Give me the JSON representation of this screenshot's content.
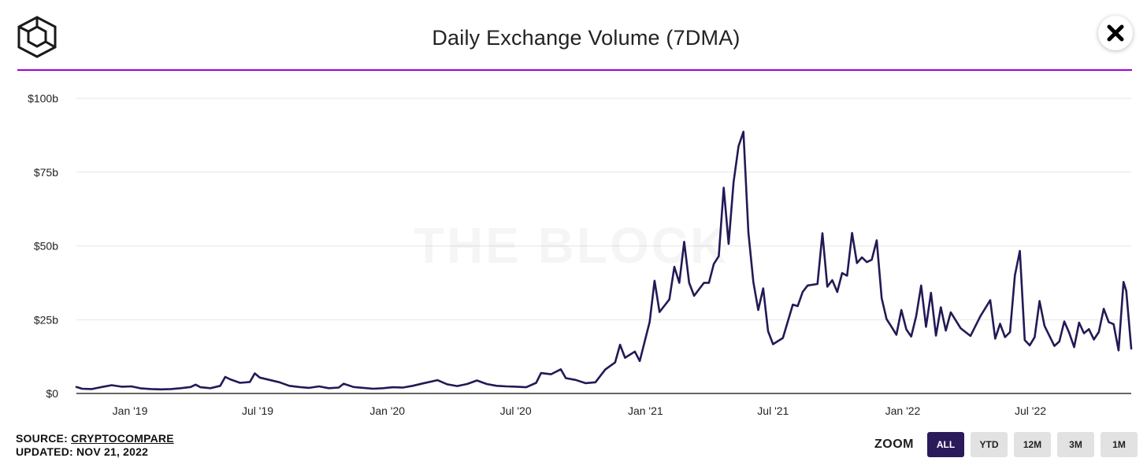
{
  "header": {
    "logo_icon": "the-block-cube-logo",
    "title": "Daily Exchange Volume (7DMA)",
    "close_icon": "close-x-icon",
    "accent_color": "#a100d9"
  },
  "watermark": "THE BLOCK",
  "chart_data": {
    "type": "line",
    "title": "Daily Exchange Volume (7DMA)",
    "xlabel": "",
    "ylabel": "",
    "x_range": [
      "2018-10-17",
      "2022-11-21"
    ],
    "ylim": [
      0,
      100
    ],
    "y_unit": "billions USD",
    "y_ticks": [
      {
        "value": 0,
        "label": "$0"
      },
      {
        "value": 25,
        "label": "$25b"
      },
      {
        "value": 50,
        "label": "$50b"
      },
      {
        "value": 75,
        "label": "$75b"
      },
      {
        "value": 100,
        "label": "$100b"
      }
    ],
    "x_ticks": [
      {
        "date": "2019-01-01",
        "label": "Jan '19"
      },
      {
        "date": "2019-07-01",
        "label": "Jul '19"
      },
      {
        "date": "2020-01-01",
        "label": "Jan '20"
      },
      {
        "date": "2020-07-01",
        "label": "Jul '20"
      },
      {
        "date": "2021-01-01",
        "label": "Jan '21"
      },
      {
        "date": "2021-07-01",
        "label": "Jul '21"
      },
      {
        "date": "2022-01-01",
        "label": "Jan '22"
      },
      {
        "date": "2022-07-01",
        "label": "Jul '22"
      }
    ],
    "grid": true,
    "legend": "none",
    "line_color": "#221a55",
    "series": [
      {
        "points": [
          [
            "2018-10-17",
            2.2
          ],
          [
            "2018-10-25",
            1.6
          ],
          [
            "2018-11-08",
            1.5
          ],
          [
            "2018-11-22",
            2.2
          ],
          [
            "2018-12-06",
            2.8
          ],
          [
            "2018-12-20",
            2.3
          ],
          [
            "2019-01-03",
            2.4
          ],
          [
            "2019-01-17",
            1.7
          ],
          [
            "2019-01-31",
            1.5
          ],
          [
            "2019-02-14",
            1.4
          ],
          [
            "2019-02-28",
            1.5
          ],
          [
            "2019-03-14",
            1.8
          ],
          [
            "2019-03-28",
            2.2
          ],
          [
            "2019-04-04",
            3.0
          ],
          [
            "2019-04-11",
            2.1
          ],
          [
            "2019-04-25",
            1.8
          ],
          [
            "2019-05-09",
            2.6
          ],
          [
            "2019-05-16",
            5.6
          ],
          [
            "2019-05-23",
            4.8
          ],
          [
            "2019-06-06",
            3.6
          ],
          [
            "2019-06-20",
            3.9
          ],
          [
            "2019-06-27",
            6.8
          ],
          [
            "2019-07-04",
            5.4
          ],
          [
            "2019-07-18",
            4.6
          ],
          [
            "2019-08-01",
            3.8
          ],
          [
            "2019-08-15",
            2.6
          ],
          [
            "2019-08-29",
            2.2
          ],
          [
            "2019-09-12",
            1.9
          ],
          [
            "2019-09-26",
            2.4
          ],
          [
            "2019-10-10",
            1.8
          ],
          [
            "2019-10-24",
            2.0
          ],
          [
            "2019-10-31",
            3.3
          ],
          [
            "2019-11-14",
            2.2
          ],
          [
            "2019-11-28",
            1.9
          ],
          [
            "2019-12-12",
            1.6
          ],
          [
            "2019-12-26",
            1.8
          ],
          [
            "2020-01-09",
            2.1
          ],
          [
            "2020-01-23",
            2.0
          ],
          [
            "2020-02-06",
            2.6
          ],
          [
            "2020-02-20",
            3.4
          ],
          [
            "2020-03-12",
            4.5
          ],
          [
            "2020-03-26",
            3.1
          ],
          [
            "2020-04-09",
            2.5
          ],
          [
            "2020-04-23",
            3.2
          ],
          [
            "2020-05-07",
            4.4
          ],
          [
            "2020-05-21",
            3.2
          ],
          [
            "2020-06-04",
            2.6
          ],
          [
            "2020-06-18",
            2.4
          ],
          [
            "2020-07-02",
            2.3
          ],
          [
            "2020-07-16",
            2.1
          ],
          [
            "2020-07-30",
            3.6
          ],
          [
            "2020-08-06",
            6.9
          ],
          [
            "2020-08-20",
            6.5
          ],
          [
            "2020-09-03",
            8.2
          ],
          [
            "2020-09-10",
            5.2
          ],
          [
            "2020-09-24",
            4.6
          ],
          [
            "2020-10-08",
            3.5
          ],
          [
            "2020-10-22",
            3.8
          ],
          [
            "2020-11-05",
            8.1
          ],
          [
            "2020-11-19",
            10.5
          ],
          [
            "2020-11-26",
            16.5
          ],
          [
            "2020-12-03",
            12.1
          ],
          [
            "2020-12-17",
            14.2
          ],
          [
            "2020-12-24",
            11.0
          ],
          [
            "2021-01-07",
            24.3
          ],
          [
            "2021-01-14",
            38.2
          ],
          [
            "2021-01-21",
            27.6
          ],
          [
            "2021-02-04",
            31.9
          ],
          [
            "2021-02-11",
            42.9
          ],
          [
            "2021-02-18",
            37.5
          ],
          [
            "2021-02-25",
            51.4
          ],
          [
            "2021-03-04",
            37.5
          ],
          [
            "2021-03-11",
            33.1
          ],
          [
            "2021-03-25",
            37.5
          ],
          [
            "2021-04-01",
            37.5
          ],
          [
            "2021-04-08",
            43.9
          ],
          [
            "2021-04-15",
            46.5
          ],
          [
            "2021-04-22",
            69.7
          ],
          [
            "2021-04-29",
            50.7
          ],
          [
            "2021-05-06",
            71.6
          ],
          [
            "2021-05-13",
            83.8
          ],
          [
            "2021-05-20",
            88.7
          ],
          [
            "2021-05-27",
            54.6
          ],
          [
            "2021-06-03",
            37.8
          ],
          [
            "2021-06-10",
            28.3
          ],
          [
            "2021-06-17",
            35.6
          ],
          [
            "2021-06-24",
            21.1
          ],
          [
            "2021-07-01",
            16.7
          ],
          [
            "2021-07-15",
            18.8
          ],
          [
            "2021-07-29",
            30.1
          ],
          [
            "2021-08-05",
            29.6
          ],
          [
            "2021-08-12",
            34.4
          ],
          [
            "2021-08-19",
            36.6
          ],
          [
            "2021-09-02",
            37.1
          ],
          [
            "2021-09-09",
            54.3
          ],
          [
            "2021-09-16",
            36.2
          ],
          [
            "2021-09-23",
            38.4
          ],
          [
            "2021-09-30",
            34.4
          ],
          [
            "2021-10-07",
            40.8
          ],
          [
            "2021-10-14",
            39.9
          ],
          [
            "2021-10-21",
            54.4
          ],
          [
            "2021-10-28",
            44.2
          ],
          [
            "2021-11-04",
            46.1
          ],
          [
            "2021-11-11",
            44.5
          ],
          [
            "2021-11-18",
            45.3
          ],
          [
            "2021-11-25",
            51.9
          ],
          [
            "2021-12-02",
            32.3
          ],
          [
            "2021-12-09",
            25.2
          ],
          [
            "2021-12-16",
            22.6
          ],
          [
            "2021-12-23",
            19.9
          ],
          [
            "2021-12-30",
            28.3
          ],
          [
            "2022-01-06",
            21.7
          ],
          [
            "2022-01-13",
            19.3
          ],
          [
            "2022-01-20",
            26.2
          ],
          [
            "2022-01-27",
            36.6
          ],
          [
            "2022-02-03",
            22.6
          ],
          [
            "2022-02-10",
            34.1
          ],
          [
            "2022-02-17",
            19.6
          ],
          [
            "2022-02-24",
            29.2
          ],
          [
            "2022-03-03",
            21.3
          ],
          [
            "2022-03-10",
            27.5
          ],
          [
            "2022-03-24",
            22.1
          ],
          [
            "2022-04-07",
            19.5
          ],
          [
            "2022-04-21",
            26.2
          ],
          [
            "2022-05-05",
            31.6
          ],
          [
            "2022-05-12",
            18.6
          ],
          [
            "2022-05-19",
            23.6
          ],
          [
            "2022-05-26",
            19.1
          ],
          [
            "2022-06-02",
            20.8
          ],
          [
            "2022-06-09",
            40.0
          ],
          [
            "2022-06-16",
            48.3
          ],
          [
            "2022-06-23",
            18.1
          ],
          [
            "2022-06-30",
            16.3
          ],
          [
            "2022-07-07",
            19.1
          ],
          [
            "2022-07-14",
            31.3
          ],
          [
            "2022-07-21",
            22.9
          ],
          [
            "2022-08-04",
            16.1
          ],
          [
            "2022-08-11",
            17.6
          ],
          [
            "2022-08-18",
            24.4
          ],
          [
            "2022-08-25",
            20.6
          ],
          [
            "2022-09-01",
            15.7
          ],
          [
            "2022-09-08",
            24.0
          ],
          [
            "2022-09-15",
            20.4
          ],
          [
            "2022-09-22",
            21.8
          ],
          [
            "2022-09-29",
            18.3
          ],
          [
            "2022-10-06",
            20.8
          ],
          [
            "2022-10-13",
            28.7
          ],
          [
            "2022-10-20",
            24.2
          ],
          [
            "2022-10-27",
            23.5
          ],
          [
            "2022-11-03",
            14.6
          ],
          [
            "2022-11-10",
            37.8
          ],
          [
            "2022-11-14",
            34.7
          ],
          [
            "2022-11-21",
            15.2
          ]
        ]
      }
    ]
  },
  "footer": {
    "source_label": "SOURCE:",
    "source_name": "CRYPTOCOMPARE",
    "updated_label": "UPDATED:",
    "updated_date": "NOV 21, 2022"
  },
  "zoom": {
    "label": "ZOOM",
    "buttons": [
      {
        "label": "ALL",
        "active": true
      },
      {
        "label": "YTD",
        "active": false
      },
      {
        "label": "12M",
        "active": false
      },
      {
        "label": "3M",
        "active": false
      },
      {
        "label": "1M",
        "active": false
      }
    ],
    "active_color": "#2b1b5a"
  }
}
